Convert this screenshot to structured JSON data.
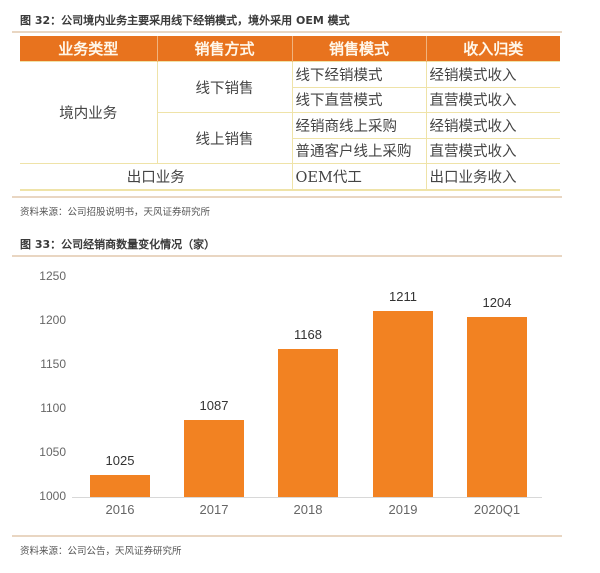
{
  "figure32": {
    "title": "图 32：公司境内业务主要采用线下经销模式，境外采用 OEM 模式",
    "table": {
      "headers": [
        "业务类型",
        "销售方式",
        "销售模式",
        "收入归类"
      ],
      "rows": [
        {
          "business_type": "境内业务",
          "sales_method": "线下销售",
          "sales_mode": "线下经销模式",
          "revenue_class": "经销模式收入"
        },
        {
          "business_type": "境内业务",
          "sales_method": "线下销售",
          "sales_mode": "线下直营模式",
          "revenue_class": "直营模式收入"
        },
        {
          "business_type": "境内业务",
          "sales_method": "线上销售",
          "sales_mode": "经销商线上采购",
          "revenue_class": "经销模式收入"
        },
        {
          "business_type": "境内业务",
          "sales_method": "线上销售",
          "sales_mode": "普通客户线上采购",
          "revenue_class": "直营模式收入"
        },
        {
          "business_type": "出口业务",
          "sales_method": "出口业务",
          "sales_mode": "OEM代工",
          "revenue_class": "出口业务收入"
        }
      ]
    },
    "source": "资料来源：公司招股说明书，天风证券研究所"
  },
  "figure33": {
    "title": "图 33：公司经销商数量变化情况（家）",
    "source": "资料来源：公司公告，天风证券研究所"
  },
  "colors": {
    "header_bg": "#e8731e",
    "bar": "#f28222",
    "grid_line": "#efe3a8",
    "rule": "#e9d6c2"
  },
  "chart_data": {
    "type": "bar",
    "title": "图 33：公司经销商数量变化情况（家）",
    "categories": [
      "2016",
      "2017",
      "2018",
      "2019",
      "2020Q1"
    ],
    "values": [
      1025,
      1087,
      1168,
      1211,
      1204
    ],
    "data_labels": [
      "1025",
      "1087",
      "1168",
      "1211",
      "1204"
    ],
    "xlabel": "",
    "ylabel": "家",
    "ylim": [
      1000,
      1250
    ],
    "yticks": [
      "1000",
      "1050",
      "1100",
      "1150",
      "1200",
      "1250"
    ],
    "grid": false,
    "legend": null
  }
}
